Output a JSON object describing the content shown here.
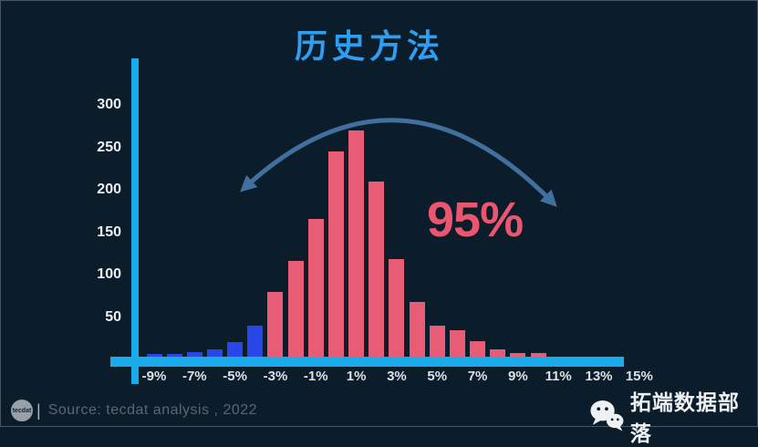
{
  "title": "历史方法",
  "annotation": {
    "label": "95%"
  },
  "chart_data": {
    "type": "bar",
    "title": "历史方法",
    "categories": [
      "-9%",
      "-8%",
      "-7%",
      "-6%",
      "-5%",
      "-4%",
      "-3%",
      "-2%",
      "-1%",
      "0%",
      "1%",
      "2%",
      "3%",
      "4%",
      "5%",
      "6%",
      "7%",
      "8%",
      "9%",
      "10%"
    ],
    "values": [
      6,
      6,
      9,
      12,
      20,
      40,
      80,
      116,
      166,
      245,
      270,
      210,
      118,
      68,
      40,
      34,
      21,
      12,
      7,
      7
    ],
    "blue_bar_count": 6,
    "ytick_values": [
      50,
      100,
      150,
      200,
      250,
      300
    ],
    "xtick_labels": [
      "-9%",
      "-7%",
      "-5%",
      "-3%",
      "-1%",
      "1%",
      "3%",
      "5%",
      "7%",
      "9%",
      "11%",
      "13%",
      "15%"
    ],
    "ylim": [
      0,
      310
    ],
    "grid": false,
    "legend": false,
    "annotations": [
      "95%"
    ],
    "annotation_note": "curved double-headed arrow spanning the central 95% of the distribution"
  },
  "colors": {
    "background": "#0b1c2a",
    "title": "#2f9ef0",
    "axis": "#1aabea",
    "bar_blue": "#2847e6",
    "bar_pink": "#e85c75",
    "arrow": "#41709f",
    "annotation": "#e8566f",
    "tick_label": "#eceff2",
    "source_text": "#5c6672",
    "footer_text": "#eef1f4"
  },
  "footer": {
    "logo_text": "tecdat",
    "separator": "|",
    "source": "Source: tecdat analysis , 2022",
    "wechat_name": "拓端数据部落"
  }
}
